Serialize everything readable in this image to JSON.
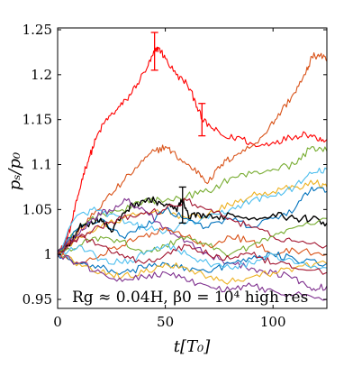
{
  "chart_data": {
    "type": "line",
    "title": "",
    "xlabel": "t[T₀]",
    "ylabel": "pₛ/p₀",
    "xlim": [
      0,
      125
    ],
    "ylim": [
      0.94,
      1.252
    ],
    "x_ticks": [
      0,
      50,
      100
    ],
    "y_ticks": [
      0.95,
      1,
      1.05,
      1.1,
      1.15,
      1.2,
      1.25
    ],
    "x_tick_labels": [
      "0",
      "50",
      "100"
    ],
    "y_tick_labels": [
      "0.95",
      "1",
      "1.05",
      "1.1",
      "1.15",
      "1.2",
      "1.25"
    ],
    "grid": false,
    "legend": "none",
    "annotation": "Rg ≈ 0.04H, β0 = 10⁴ high res",
    "series": [
      {
        "color": "#ff0000",
        "points": [
          [
            0,
            1.0
          ],
          [
            3,
            1.01
          ],
          [
            6,
            1.03
          ],
          [
            9,
            1.06
          ],
          [
            12,
            1.09
          ],
          [
            15,
            1.11
          ],
          [
            18,
            1.13
          ],
          [
            22,
            1.148
          ],
          [
            27,
            1.16
          ],
          [
            32,
            1.172
          ],
          [
            37,
            1.19
          ],
          [
            42,
            1.21
          ],
          [
            45,
            1.225
          ],
          [
            47,
            1.23
          ],
          [
            50,
            1.218
          ],
          [
            55,
            1.2
          ],
          [
            60,
            1.19
          ],
          [
            64,
            1.17
          ],
          [
            67,
            1.15
          ],
          [
            72,
            1.14
          ],
          [
            78,
            1.13
          ],
          [
            85,
            1.13
          ],
          [
            92,
            1.12
          ],
          [
            100,
            1.125
          ],
          [
            108,
            1.13
          ],
          [
            115,
            1.135
          ],
          [
            120,
            1.13
          ],
          [
            125,
            1.128
          ]
        ]
      },
      {
        "color": "#d95319",
        "points": [
          [
            0,
            1.0
          ],
          [
            8,
            1.02
          ],
          [
            15,
            1.04
          ],
          [
            22,
            1.06
          ],
          [
            30,
            1.08
          ],
          [
            38,
            1.1
          ],
          [
            45,
            1.115
          ],
          [
            50,
            1.12
          ],
          [
            55,
            1.11
          ],
          [
            60,
            1.1
          ],
          [
            66,
            1.09
          ],
          [
            70,
            1.08
          ],
          [
            76,
            1.1
          ],
          [
            82,
            1.11
          ],
          [
            90,
            1.12
          ],
          [
            98,
            1.14
          ],
          [
            104,
            1.16
          ],
          [
            110,
            1.18
          ],
          [
            115,
            1.2
          ],
          [
            118,
            1.22
          ],
          [
            122,
            1.222
          ],
          [
            125,
            1.215
          ]
        ]
      },
      {
        "color": "#77ac30",
        "points": [
          [
            0,
            1.0
          ],
          [
            10,
            1.03
          ],
          [
            20,
            1.045
          ],
          [
            30,
            1.05
          ],
          [
            40,
            1.06
          ],
          [
            50,
            1.06
          ],
          [
            60,
            1.065
          ],
          [
            70,
            1.07
          ],
          [
            80,
            1.085
          ],
          [
            90,
            1.09
          ],
          [
            100,
            1.095
          ],
          [
            110,
            1.1
          ],
          [
            118,
            1.12
          ],
          [
            125,
            1.115
          ]
        ]
      },
      {
        "color": "#edb120",
        "points": [
          [
            0,
            1.0
          ],
          [
            10,
            1.02
          ],
          [
            20,
            1.03
          ],
          [
            30,
            1.04
          ],
          [
            40,
            1.045
          ],
          [
            50,
            1.05
          ],
          [
            60,
            1.04
          ],
          [
            70,
            1.045
          ],
          [
            80,
            1.055
          ],
          [
            90,
            1.065
          ],
          [
            100,
            1.07
          ],
          [
            110,
            1.075
          ],
          [
            120,
            1.08
          ],
          [
            125,
            1.075
          ]
        ]
      },
      {
        "color": "#4dbeee",
        "points": [
          [
            0,
            1.0
          ],
          [
            8,
            1.04
          ],
          [
            16,
            1.05
          ],
          [
            24,
            1.045
          ],
          [
            32,
            1.035
          ],
          [
            40,
            1.03
          ],
          [
            50,
            1.025
          ],
          [
            60,
            1.035
          ],
          [
            70,
            1.04
          ],
          [
            80,
            1.05
          ],
          [
            90,
            1.06
          ],
          [
            100,
            1.065
          ],
          [
            110,
            1.075
          ],
          [
            118,
            1.09
          ],
          [
            125,
            1.095
          ]
        ]
      },
      {
        "color": "#0072bd",
        "points": [
          [
            0,
            1.0
          ],
          [
            10,
            1.03
          ],
          [
            20,
            1.04
          ],
          [
            30,
            1.02
          ],
          [
            40,
            1.03
          ],
          [
            50,
            1.05
          ],
          [
            60,
            1.04
          ],
          [
            70,
            1.03
          ],
          [
            80,
            1.04
          ],
          [
            90,
            1.03
          ],
          [
            100,
            1.04
          ],
          [
            110,
            1.05
          ],
          [
            118,
            1.075
          ],
          [
            125,
            1.07
          ]
        ]
      },
      {
        "color": "#000000",
        "points": [
          [
            0,
            1.0
          ],
          [
            5,
            1.01
          ],
          [
            10,
            1.03
          ],
          [
            15,
            1.035
          ],
          [
            20,
            1.04
          ],
          [
            25,
            1.025
          ],
          [
            30,
            1.045
          ],
          [
            35,
            1.055
          ],
          [
            40,
            1.06
          ],
          [
            45,
            1.06
          ],
          [
            50,
            1.055
          ],
          [
            55,
            1.05
          ],
          [
            58,
            1.06
          ],
          [
            61,
            1.04
          ],
          [
            66,
            1.045
          ],
          [
            72,
            1.04
          ],
          [
            80,
            1.045
          ],
          [
            90,
            1.04
          ],
          [
            100,
            1.045
          ],
          [
            110,
            1.04
          ],
          [
            118,
            1.04
          ],
          [
            125,
            1.035
          ]
        ]
      },
      {
        "color": "#a2142f",
        "points": [
          [
            0,
            1.0
          ],
          [
            10,
            1.02
          ],
          [
            20,
            1.03
          ],
          [
            30,
            1.04
          ],
          [
            40,
            1.045
          ],
          [
            50,
            1.05
          ],
          [
            60,
            1.06
          ],
          [
            70,
            1.05
          ],
          [
            80,
            1.04
          ],
          [
            90,
            1.03
          ],
          [
            100,
            1.02
          ],
          [
            110,
            1.015
          ],
          [
            125,
            1.01
          ]
        ]
      },
      {
        "color": "#7e2f8e",
        "points": [
          [
            0,
            1.0
          ],
          [
            8,
            1.02
          ],
          [
            16,
            1.04
          ],
          [
            24,
            1.05
          ],
          [
            32,
            1.06
          ],
          [
            40,
            1.05
          ],
          [
            50,
            1.03
          ],
          [
            60,
            1.015
          ],
          [
            70,
            1.0
          ],
          [
            80,
            0.99
          ],
          [
            90,
            0.985
          ],
          [
            100,
            0.98
          ],
          [
            110,
            0.975
          ],
          [
            118,
            0.96
          ],
          [
            125,
            0.965
          ]
        ]
      },
      {
        "color": "#d95319",
        "points": [
          [
            0,
            1.0
          ],
          [
            10,
            0.99
          ],
          [
            20,
            1.0
          ],
          [
            30,
            1.01
          ],
          [
            40,
            1.02
          ],
          [
            50,
            1.03
          ],
          [
            60,
            1.02
          ],
          [
            70,
            1.01
          ],
          [
            80,
            1.02
          ],
          [
            90,
            1.015
          ],
          [
            100,
            1.0
          ],
          [
            110,
            1.005
          ],
          [
            125,
            1.0
          ]
        ]
      },
      {
        "color": "#0072bd",
        "points": [
          [
            0,
            1.0
          ],
          [
            10,
            0.99
          ],
          [
            20,
            0.985
          ],
          [
            30,
            0.98
          ],
          [
            40,
            0.985
          ],
          [
            50,
            0.99
          ],
          [
            60,
            0.985
          ],
          [
            70,
            0.98
          ],
          [
            80,
            0.99
          ],
          [
            90,
            0.995
          ],
          [
            100,
            1.0
          ],
          [
            110,
            0.995
          ],
          [
            125,
            0.99
          ]
        ]
      },
      {
        "color": "#77ac30",
        "points": [
          [
            0,
            1.0
          ],
          [
            10,
            1.01
          ],
          [
            20,
            1.02
          ],
          [
            30,
            1.015
          ],
          [
            40,
            1.0
          ],
          [
            50,
            1.01
          ],
          [
            60,
            1.02
          ],
          [
            70,
            1.01
          ],
          [
            80,
            1.0
          ],
          [
            90,
            1.01
          ],
          [
            100,
            1.02
          ],
          [
            110,
            1.03
          ],
          [
            125,
            1.04
          ]
        ]
      },
      {
        "color": "#edb120",
        "points": [
          [
            0,
            1.0
          ],
          [
            10,
            0.99
          ],
          [
            20,
            0.98
          ],
          [
            30,
            0.975
          ],
          [
            40,
            0.98
          ],
          [
            50,
            0.99
          ],
          [
            60,
            0.985
          ],
          [
            70,
            0.975
          ],
          [
            80,
            0.97
          ],
          [
            90,
            0.975
          ],
          [
            100,
            0.98
          ],
          [
            110,
            0.985
          ],
          [
            125,
            0.99
          ]
        ]
      },
      {
        "color": "#4dbeee",
        "points": [
          [
            0,
            1.0
          ],
          [
            10,
            1.01
          ],
          [
            20,
            0.995
          ],
          [
            30,
            0.99
          ],
          [
            40,
            1.0
          ],
          [
            50,
            1.01
          ],
          [
            60,
            1.0
          ],
          [
            70,
            0.99
          ],
          [
            80,
            0.985
          ],
          [
            90,
            0.99
          ],
          [
            100,
            1.0
          ],
          [
            110,
            0.99
          ],
          [
            125,
            0.985
          ]
        ]
      },
      {
        "color": "#7e2f8e",
        "points": [
          [
            0,
            1.0
          ],
          [
            10,
            0.99
          ],
          [
            20,
            0.98
          ],
          [
            30,
            0.97
          ],
          [
            40,
            0.975
          ],
          [
            50,
            0.98
          ],
          [
            60,
            0.97
          ],
          [
            70,
            0.965
          ],
          [
            80,
            0.96
          ],
          [
            90,
            0.965
          ],
          [
            100,
            0.96
          ],
          [
            110,
            0.955
          ],
          [
            125,
            0.95
          ]
        ]
      },
      {
        "color": "#a2142f",
        "points": [
          [
            0,
            1.0
          ],
          [
            10,
            1.02
          ],
          [
            20,
            1.01
          ],
          [
            30,
            1.0
          ],
          [
            40,
            0.99
          ],
          [
            50,
            1.0
          ],
          [
            60,
            1.01
          ],
          [
            70,
            1.0
          ],
          [
            80,
            0.995
          ],
          [
            90,
            1.0
          ],
          [
            100,
            0.99
          ],
          [
            110,
            0.985
          ],
          [
            125,
            0.98
          ]
        ]
      }
    ],
    "error_bars": [
      {
        "color": "#ff0000",
        "x": 45,
        "y": 1.23,
        "low": 1.205,
        "high": 1.247
      },
      {
        "color": "#ff0000",
        "x": 67,
        "y": 1.15,
        "low": 1.132,
        "high": 1.168
      },
      {
        "color": "#000000",
        "x": 58,
        "y": 1.055,
        "low": 1.035,
        "high": 1.075
      }
    ]
  }
}
